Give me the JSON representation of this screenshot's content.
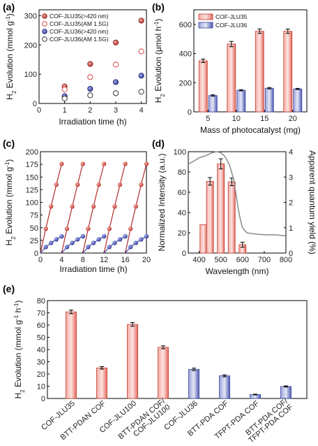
{
  "colors": {
    "red": "#d94a43",
    "red_light": "#f6c7c2",
    "blue": "#3b46a6",
    "blue_light": "#c7cbe9",
    "line": "#b32c2a",
    "spectrum": "#8a8a8a"
  },
  "chart_data": [
    {
      "panel": "(a)",
      "type": "scatter",
      "xlabel": "Irradiation time (h)",
      "ylabel": "H2 Evolution (mmol g-1)",
      "xlim": [
        0,
        4.2
      ],
      "ylim": [
        0,
        320
      ],
      "xticks": [
        "0",
        "1",
        "2",
        "3",
        "4"
      ],
      "yticks": [
        "0",
        "100",
        "200",
        "300"
      ],
      "legend_position": "top-left",
      "series": [
        {
          "name": "COF-JLU35(>420 nm)",
          "style": "red-filled",
          "x": [
            1,
            2,
            3,
            4
          ],
          "y": [
            58,
            135,
            208,
            283
          ]
        },
        {
          "name": "COF-JLU35(AM 1.5G)",
          "style": "red-open",
          "x": [
            1,
            2,
            3,
            4
          ],
          "y": [
            48,
            90,
            133,
            178
          ]
        },
        {
          "name": "COF-JLU36(>420 nm)",
          "style": "blue-filled",
          "x": [
            1,
            2,
            3,
            4
          ],
          "y": [
            25,
            50,
            73,
            95
          ]
        },
        {
          "name": "COF-JLU36(AM 1.5G)",
          "style": "black-open",
          "x": [
            1,
            2,
            3,
            4
          ],
          "y": [
            17,
            28,
            35,
            40
          ]
        }
      ]
    },
    {
      "panel": "(b)",
      "type": "bar",
      "xlabel": "Mass of photocatalyst (mg)",
      "ylabel": "H2 Evolution (μmol h-1)",
      "categories": [
        "5",
        "10",
        "15",
        "20"
      ],
      "ylim": [
        0,
        700
      ],
      "yticks": [
        "0",
        "200",
        "400",
        "600"
      ],
      "legend_position": "top-left",
      "series": [
        {
          "name": "COF-JLU35",
          "values": [
            350,
            465,
            553,
            553
          ],
          "errors": [
            12,
            18,
            15,
            15
          ]
        },
        {
          "name": "COF-JLU36",
          "values": [
            112,
            148,
            162,
            157
          ],
          "errors": [
            5,
            4,
            5,
            4
          ]
        }
      ]
    },
    {
      "panel": "(c)",
      "type": "line",
      "xlabel": "Irradiation time (h)",
      "ylabel": "H2 Evolution (mmol g-1)",
      "xlim": [
        0,
        20
      ],
      "ylim": [
        0,
        200
      ],
      "xticks": [
        "0",
        "4",
        "8",
        "12",
        "16",
        "20"
      ],
      "yticks": [
        "0",
        "25",
        "50",
        "75",
        "100",
        "125",
        "150",
        "175",
        "200"
      ],
      "cycle_length_h": 4,
      "cycles": 5,
      "series": [
        {
          "name": "COF-JLU35",
          "style": "red",
          "t": [
            1,
            2,
            3,
            4
          ],
          "y": [
            48,
            92,
            135,
            176
          ]
        },
        {
          "name": "COF-JLU36",
          "style": "blue",
          "t": [
            1,
            2,
            3,
            4
          ],
          "y": [
            12,
            20,
            27,
            33
          ]
        }
      ]
    },
    {
      "panel": "(d)",
      "type": "bar",
      "xlabel": "Wavelength (nm)",
      "ylabel": "Normalized Intensity (a.u.)",
      "ylabel_right": "Apparent quantum yield (%)",
      "xlim": [
        350,
        800
      ],
      "xticks": [
        "400",
        "500",
        "600",
        "700",
        "800"
      ],
      "ylim": [
        0,
        100
      ],
      "yticks": [
        "0",
        "20",
        "40",
        "60",
        "80",
        "100"
      ],
      "ylim_right": [
        0,
        4
      ],
      "yticks_right": [
        "0",
        "1",
        "2",
        "3",
        "4"
      ],
      "bars": {
        "x": [
          420,
          450,
          500,
          550,
          600
        ],
        "aqy": [
          1.12,
          2.83,
          3.52,
          2.81,
          0.33
        ],
        "errors": [
          0,
          0.15,
          0.2,
          0.15,
          0.1
        ]
      },
      "spectrum": {
        "x": [
          350,
          370,
          400,
          430,
          460,
          480,
          500,
          520,
          540,
          560,
          570,
          580,
          590,
          600,
          620,
          650,
          700,
          750,
          800
        ],
        "y": [
          88,
          90,
          94,
          96,
          99,
          100,
          99,
          95,
          87,
          72,
          58,
          44,
          33,
          25,
          20,
          19,
          18,
          18,
          17
        ]
      }
    },
    {
      "panel": "(e)",
      "type": "bar",
      "ylabel": "H2 Evolution (mmol g-1 h-1)",
      "ylim": [
        0,
        80
      ],
      "yticks": [
        "0",
        "10",
        "20",
        "30",
        "40",
        "50",
        "60",
        "70",
        "80"
      ],
      "categories": [
        "COF-JLU35",
        "BTT-PDAN COF",
        "COF-JLU100",
        "BTT-PDAN COF/ COF-JLU100",
        "COF-JLU36",
        "BTT-PDA COF",
        "TFPT-PDA COF",
        "BTT-PDA COF/ TFPT-PDA COF"
      ],
      "values": [
        70.8,
        25.0,
        60.5,
        41.8,
        23.8,
        18.5,
        3.2,
        9.8
      ],
      "errors": [
        1.5,
        1.0,
        1.5,
        1.2,
        1.0,
        0.8,
        0.3,
        0.5
      ],
      "bar_colors": [
        "red",
        "red",
        "red",
        "red",
        "blue",
        "blue",
        "blue",
        "blue"
      ]
    }
  ],
  "labels": {
    "a": "(a)",
    "b": "(b)",
    "c": "(c)",
    "d": "(d)",
    "e": "(e)"
  }
}
